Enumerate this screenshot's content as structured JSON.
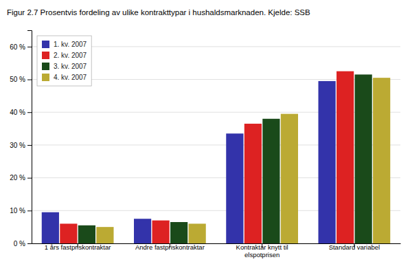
{
  "chart_data": {
    "type": "bar",
    "title": "Figur 2.7 Prosentvis fordeling av ulike kontrakttypar i hushaldsmarknaden. Kjelde: SSB",
    "categories": [
      "1 års fastpriskontraktar",
      "Andre fastpriskontraktar",
      "Kontraktar knytt til\nelspotprisen",
      "Standard variabel"
    ],
    "series": [
      {
        "name": "1. kv. 2007",
        "color": "#3333aa",
        "values": [
          9.5,
          7.5,
          33.5,
          49.5
        ]
      },
      {
        "name": "2. kv. 2007",
        "color": "#dd2222",
        "values": [
          6.0,
          7.0,
          36.5,
          52.5
        ]
      },
      {
        "name": "3. kv. 2007",
        "color": "#1a4a1a",
        "values": [
          5.5,
          6.5,
          38.0,
          51.5
        ]
      },
      {
        "name": "4. kv. 2007",
        "color": "#bbaa33",
        "values": [
          5.0,
          6.0,
          39.5,
          50.5
        ]
      }
    ],
    "ylim": [
      0,
      65
    ],
    "yticks": [
      {
        "value": 0,
        "label": "0 %"
      },
      {
        "value": 10,
        "label": "10 %"
      },
      {
        "value": 20,
        "label": "20 %"
      },
      {
        "value": 30,
        "label": "30 %"
      },
      {
        "value": 40,
        "label": "40 %"
      },
      {
        "value": 50,
        "label": "50 %"
      },
      {
        "value": 60,
        "label": "60 %"
      }
    ],
    "grid": true,
    "legend": "upper left"
  }
}
